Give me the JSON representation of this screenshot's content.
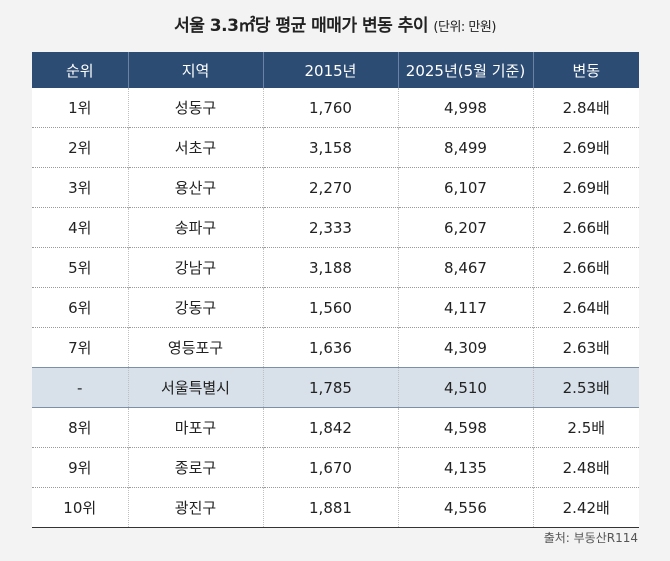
{
  "title": "서울 3.3㎡당 평균 매매가 변동 추이",
  "unit": "(단위: 만원)",
  "headers": [
    "순위",
    "지역",
    "2015년",
    "2025년(5월 기준)",
    "변동"
  ],
  "rows": [
    [
      "1위",
      "성동구",
      "1,760",
      "4,998",
      "2.84배"
    ],
    [
      "2위",
      "서초구",
      "3,158",
      "8,499",
      "2.69배"
    ],
    [
      "3위",
      "용산구",
      "2,270",
      "6,107",
      "2.69배"
    ],
    [
      "4위",
      "송파구",
      "2,333",
      "6,207",
      "2.66배"
    ],
    [
      "5위",
      "강남구",
      "3,188",
      "8,467",
      "2.66배"
    ],
    [
      "6위",
      "강동구",
      "1,560",
      "4,117",
      "2.64배"
    ],
    [
      "7위",
      "영등포구",
      "1,636",
      "4,309",
      "2.63배"
    ],
    [
      "-",
      "서울특별시",
      "1,785",
      "4,510",
      "2.53배"
    ],
    [
      "8위",
      "마포구",
      "1,842",
      "4,598",
      "2.5배"
    ],
    [
      "9위",
      "종로구",
      "1,670",
      "4,135",
      "2.48배"
    ],
    [
      "10위",
      "광진구",
      "1,881",
      "4,556",
      "2.42배"
    ]
  ],
  "highlight_row": 7,
  "source": "출처: 부동산R114"
}
